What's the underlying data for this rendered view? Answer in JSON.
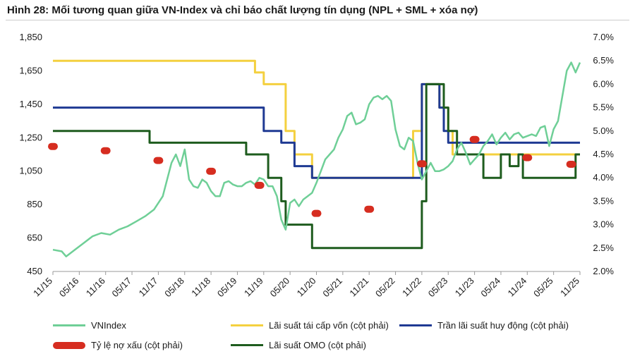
{
  "title": "Hình 28: Mối tương quan giữa VN-Index và chỉ báo chất lượng tín dụng (NPL + SML + xóa nợ)",
  "chart_data": {
    "type": "line",
    "x_range": [
      2015.833,
      2025.833
    ],
    "x_ticks": [
      {
        "x": 2015.833,
        "label": "11/15"
      },
      {
        "x": 2016.333,
        "label": "05/16"
      },
      {
        "x": 2016.833,
        "label": "11/16"
      },
      {
        "x": 2017.333,
        "label": "05/17"
      },
      {
        "x": 2017.833,
        "label": "11/17"
      },
      {
        "x": 2018.333,
        "label": "05/18"
      },
      {
        "x": 2018.833,
        "label": "11/18"
      },
      {
        "x": 2019.333,
        "label": "05/19"
      },
      {
        "x": 2019.833,
        "label": "11/19"
      },
      {
        "x": 2020.333,
        "label": "05/20"
      },
      {
        "x": 2020.833,
        "label": "11/20"
      },
      {
        "x": 2021.333,
        "label": "05/21"
      },
      {
        "x": 2021.833,
        "label": "11/21"
      },
      {
        "x": 2022.333,
        "label": "05/22"
      },
      {
        "x": 2022.833,
        "label": "11/22"
      },
      {
        "x": 2023.333,
        "label": "05/23"
      },
      {
        "x": 2023.833,
        "label": "11/23"
      },
      {
        "x": 2024.333,
        "label": "05/24"
      },
      {
        "x": 2024.833,
        "label": "11/24"
      },
      {
        "x": 2025.333,
        "label": "05/25"
      },
      {
        "x": 2025.833,
        "label": "11/25"
      }
    ],
    "y_left": {
      "min": 450,
      "max": 1850,
      "ticks": [
        "450",
        "650",
        "850",
        "1,050",
        "1,250",
        "1,450",
        "1,650",
        "1,850"
      ],
      "tick_values": [
        450,
        650,
        850,
        1050,
        1250,
        1450,
        1650,
        1850
      ]
    },
    "y_right": {
      "min": 2.0,
      "max": 7.0,
      "ticks": [
        "2.0%",
        "2.5%",
        "3.0%",
        "3.5%",
        "4.0%",
        "4.5%",
        "5.0%",
        "5.5%",
        "6.0%",
        "6.5%",
        "7.0%"
      ],
      "tick_values": [
        2.0,
        2.5,
        3.0,
        3.5,
        4.0,
        4.5,
        5.0,
        5.5,
        6.0,
        6.5,
        7.0
      ]
    },
    "series": [
      {
        "name": "VNIndex",
        "axis": "left",
        "color": "#6fcf97",
        "style": "line",
        "points": [
          [
            2015.833,
            580
          ],
          [
            2016.0,
            570
          ],
          [
            2016.083,
            540
          ],
          [
            2016.25,
            580
          ],
          [
            2016.417,
            620
          ],
          [
            2016.583,
            660
          ],
          [
            2016.75,
            680
          ],
          [
            2016.917,
            670
          ],
          [
            2017.083,
            700
          ],
          [
            2017.25,
            720
          ],
          [
            2017.417,
            750
          ],
          [
            2017.583,
            780
          ],
          [
            2017.75,
            820
          ],
          [
            2017.917,
            900
          ],
          [
            2018.0,
            1000
          ],
          [
            2018.083,
            1100
          ],
          [
            2018.167,
            1150
          ],
          [
            2018.25,
            1080
          ],
          [
            2018.333,
            1180
          ],
          [
            2018.417,
            1000
          ],
          [
            2018.5,
            960
          ],
          [
            2018.583,
            950
          ],
          [
            2018.667,
            1000
          ],
          [
            2018.75,
            980
          ],
          [
            2018.833,
            930
          ],
          [
            2018.917,
            900
          ],
          [
            2019.0,
            900
          ],
          [
            2019.083,
            980
          ],
          [
            2019.167,
            990
          ],
          [
            2019.25,
            970
          ],
          [
            2019.333,
            960
          ],
          [
            2019.417,
            960
          ],
          [
            2019.5,
            980
          ],
          [
            2019.583,
            990
          ],
          [
            2019.667,
            970
          ],
          [
            2019.75,
            1010
          ],
          [
            2019.833,
            1000
          ],
          [
            2019.917,
            960
          ],
          [
            2020.0,
            960
          ],
          [
            2020.083,
            900
          ],
          [
            2020.167,
            760
          ],
          [
            2020.25,
            700
          ],
          [
            2020.333,
            860
          ],
          [
            2020.417,
            880
          ],
          [
            2020.5,
            840
          ],
          [
            2020.583,
            880
          ],
          [
            2020.667,
            900
          ],
          [
            2020.75,
            920
          ],
          [
            2020.833,
            980
          ],
          [
            2020.917,
            1050
          ],
          [
            2021.0,
            1120
          ],
          [
            2021.083,
            1150
          ],
          [
            2021.167,
            1180
          ],
          [
            2021.25,
            1250
          ],
          [
            2021.333,
            1300
          ],
          [
            2021.417,
            1380
          ],
          [
            2021.5,
            1400
          ],
          [
            2021.583,
            1330
          ],
          [
            2021.667,
            1340
          ],
          [
            2021.75,
            1360
          ],
          [
            2021.833,
            1450
          ],
          [
            2021.917,
            1490
          ],
          [
            2022.0,
            1500
          ],
          [
            2022.083,
            1480
          ],
          [
            2022.167,
            1500
          ],
          [
            2022.25,
            1470
          ],
          [
            2022.333,
            1300
          ],
          [
            2022.417,
            1200
          ],
          [
            2022.5,
            1180
          ],
          [
            2022.583,
            1250
          ],
          [
            2022.667,
            1230
          ],
          [
            2022.75,
            1100
          ],
          [
            2022.833,
            1000
          ],
          [
            2022.917,
            1050
          ],
          [
            2023.0,
            1100
          ],
          [
            2023.083,
            1050
          ],
          [
            2023.167,
            1050
          ],
          [
            2023.25,
            1060
          ],
          [
            2023.333,
            1080
          ],
          [
            2023.417,
            1110
          ],
          [
            2023.5,
            1180
          ],
          [
            2023.583,
            1220
          ],
          [
            2023.667,
            1160
          ],
          [
            2023.75,
            1090
          ],
          [
            2023.833,
            1120
          ],
          [
            2023.917,
            1150
          ],
          [
            2024.0,
            1200
          ],
          [
            2024.083,
            1230
          ],
          [
            2024.167,
            1270
          ],
          [
            2024.25,
            1210
          ],
          [
            2024.333,
            1250
          ],
          [
            2024.417,
            1280
          ],
          [
            2024.5,
            1240
          ],
          [
            2024.583,
            1270
          ],
          [
            2024.667,
            1280
          ],
          [
            2024.75,
            1250
          ],
          [
            2024.833,
            1260
          ],
          [
            2024.917,
            1270
          ],
          [
            2025.0,
            1260
          ],
          [
            2025.083,
            1310
          ],
          [
            2025.167,
            1320
          ],
          [
            2025.25,
            1200
          ],
          [
            2025.333,
            1300
          ],
          [
            2025.417,
            1350
          ],
          [
            2025.5,
            1500
          ],
          [
            2025.583,
            1650
          ],
          [
            2025.667,
            1700
          ],
          [
            2025.75,
            1640
          ],
          [
            2025.833,
            1700
          ]
        ]
      },
      {
        "name": "Lãi suất tái cấp vốn (cột phải)",
        "axis": "right",
        "color": "#f4d03f",
        "style": "step",
        "points": [
          [
            2015.833,
            6.5
          ],
          [
            2019.667,
            6.5
          ],
          [
            2019.667,
            6.25
          ],
          [
            2019.833,
            6.25
          ],
          [
            2019.833,
            6.0
          ],
          [
            2020.25,
            6.0
          ],
          [
            2020.25,
            5.0
          ],
          [
            2020.417,
            5.0
          ],
          [
            2020.417,
            4.5
          ],
          [
            2020.75,
            4.5
          ],
          [
            2020.75,
            4.0
          ],
          [
            2022.667,
            4.0
          ],
          [
            2022.667,
            5.0
          ],
          [
            2022.833,
            5.0
          ],
          [
            2022.833,
            6.0
          ],
          [
            2023.167,
            6.0
          ],
          [
            2023.167,
            5.5
          ],
          [
            2023.333,
            5.5
          ],
          [
            2023.333,
            5.0
          ],
          [
            2023.417,
            5.0
          ],
          [
            2023.417,
            4.5
          ],
          [
            2025.833,
            4.5
          ]
        ]
      },
      {
        "name": "Trần lãi suất huy động (cột phải)",
        "axis": "right",
        "color": "#1f3a93",
        "style": "step",
        "points": [
          [
            2015.833,
            5.5
          ],
          [
            2019.833,
            5.5
          ],
          [
            2019.833,
            5.0
          ],
          [
            2020.167,
            5.0
          ],
          [
            2020.167,
            4.75
          ],
          [
            2020.417,
            4.75
          ],
          [
            2020.417,
            4.25
          ],
          [
            2020.75,
            4.25
          ],
          [
            2020.75,
            4.0
          ],
          [
            2022.833,
            4.0
          ],
          [
            2022.833,
            6.0
          ],
          [
            2023.167,
            6.0
          ],
          [
            2023.167,
            5.5
          ],
          [
            2023.25,
            5.5
          ],
          [
            2023.25,
            5.0
          ],
          [
            2023.333,
            5.0
          ],
          [
            2023.333,
            4.75
          ],
          [
            2025.833,
            4.75
          ]
        ]
      },
      {
        "name": "Lãi suất OMO (cột phải)",
        "axis": "right",
        "color": "#1e5c1e",
        "style": "step",
        "points": [
          [
            2015.833,
            5.0
          ],
          [
            2017.667,
            5.0
          ],
          [
            2017.667,
            4.75
          ],
          [
            2019.5,
            4.75
          ],
          [
            2019.5,
            4.5
          ],
          [
            2019.917,
            4.5
          ],
          [
            2019.917,
            4.0
          ],
          [
            2020.167,
            4.0
          ],
          [
            2020.167,
            3.5
          ],
          [
            2020.25,
            3.5
          ],
          [
            2020.25,
            3.0
          ],
          [
            2020.75,
            3.0
          ],
          [
            2020.75,
            2.5
          ],
          [
            2022.833,
            2.5
          ],
          [
            2022.833,
            3.5
          ],
          [
            2022.917,
            3.5
          ],
          [
            2022.917,
            6.0
          ],
          [
            2023.25,
            6.0
          ],
          [
            2023.25,
            5.5
          ],
          [
            2023.333,
            5.5
          ],
          [
            2023.333,
            5.0
          ],
          [
            2023.5,
            5.0
          ],
          [
            2023.5,
            4.5
          ],
          [
            2024.0,
            4.5
          ],
          [
            2024.0,
            4.0
          ],
          [
            2024.333,
            4.0
          ],
          [
            2024.333,
            4.5
          ],
          [
            2024.5,
            4.5
          ],
          [
            2024.5,
            4.25
          ],
          [
            2024.667,
            4.25
          ],
          [
            2024.667,
            4.5
          ],
          [
            2024.75,
            4.5
          ],
          [
            2024.75,
            4.0
          ],
          [
            2025.75,
            4.0
          ],
          [
            2025.75,
            4.5
          ],
          [
            2025.833,
            4.5
          ]
        ]
      },
      {
        "name": "Tỷ lệ nợ xấu (cột phải)",
        "axis": "right",
        "color": "#d62d20",
        "style": "pill",
        "points": [
          [
            2015.833,
            4.67
          ],
          [
            2016.833,
            4.58
          ],
          [
            2017.833,
            4.37
          ],
          [
            2018.833,
            4.14
          ],
          [
            2019.75,
            3.84
          ],
          [
            2020.833,
            3.24
          ],
          [
            2021.833,
            3.33
          ],
          [
            2022.833,
            4.3
          ],
          [
            2023.833,
            4.82
          ],
          [
            2024.833,
            4.43
          ],
          [
            2025.667,
            4.29
          ]
        ]
      }
    ],
    "legend_placement": "bottom",
    "grid": false
  },
  "legend": [
    {
      "label": "VNIndex",
      "color": "#6fcf97",
      "kind": "line"
    },
    {
      "label": "Lãi suất tái cấp vốn (cột phải)",
      "color": "#f4d03f",
      "kind": "line"
    },
    {
      "label": "Trần lãi suất huy động (cột phải)",
      "color": "#1f3a93",
      "kind": "line"
    },
    {
      "label": "Tỷ lệ nợ xấu (cột phải)",
      "color": "#d62d20",
      "kind": "pill"
    },
    {
      "label": "Lãi suất OMO (cột phải)",
      "color": "#1e5c1e",
      "kind": "line"
    }
  ]
}
